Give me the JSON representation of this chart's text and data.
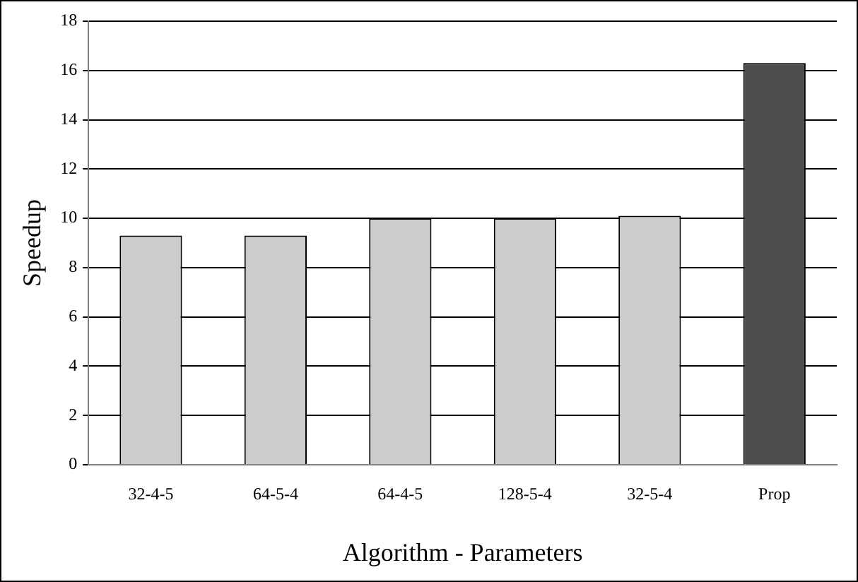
{
  "chart_data": {
    "type": "bar",
    "xlabel": "Algorithm - Parameters",
    "ylabel": "Speedup",
    "categories": [
      "32-4-5",
      "64-5-4",
      "64-4-5",
      "128-5-4",
      "32-5-4",
      "Prop"
    ],
    "values": [
      9.3,
      9.3,
      10.0,
      10.0,
      10.1,
      16.3
    ],
    "colors": [
      "#cccccc",
      "#cccccc",
      "#cccccc",
      "#cccccc",
      "#cccccc",
      "#4d4d4d"
    ],
    "ylim": [
      0,
      18
    ],
    "yticks": [
      0,
      2,
      4,
      6,
      8,
      10,
      12,
      14,
      16,
      18
    ],
    "grid": "y",
    "legend": false
  }
}
